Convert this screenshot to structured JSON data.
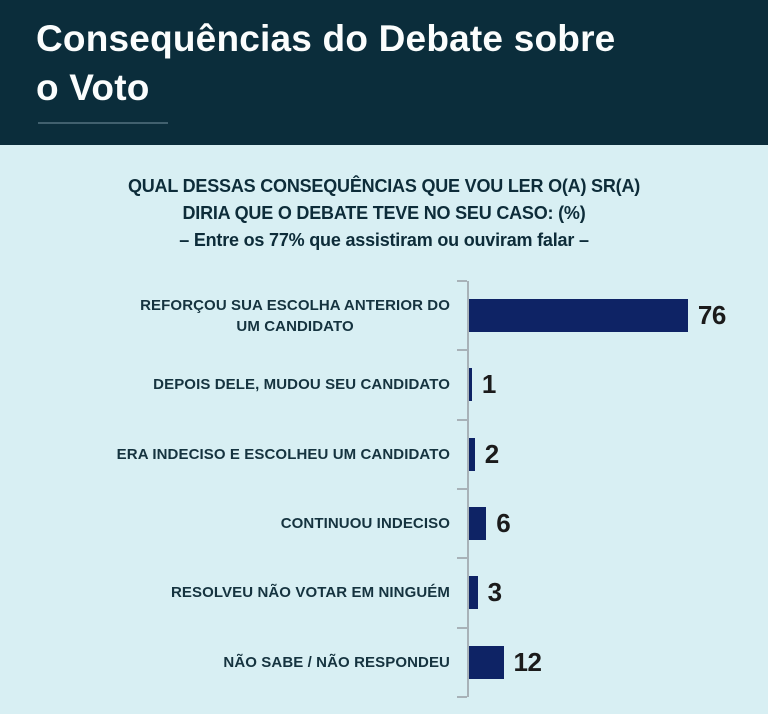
{
  "header": {
    "title": "Consequências do Debate sobre\no Voto"
  },
  "subtitle": {
    "line1": "QUAL DESSAS CONSEQUÊNCIAS QUE VOU LER O(A) SR(A)",
    "line2": "DIRIA QUE O DEBATE TEVE NO SEU CASO: (%)",
    "line3": "– Entre os 77% que assistiram ou ouviram falar –"
  },
  "chart_data": {
    "type": "bar",
    "orientation": "horizontal",
    "title": "Consequências do Debate sobre o Voto",
    "question": "QUAL DESSAS CONSEQUÊNCIAS QUE VOU LER O(A) SR(A) DIRIA QUE O DEBATE TEVE NO SEU CASO: (%) – Entre os 77% que assistiram ou ouviram falar –",
    "unit": "%",
    "categories": [
      "REFORÇOU SUA ESCOLHA ANTERIOR DO\nUM CANDIDATO",
      "DEPOIS DELE, MUDOU SEU CANDIDATO",
      "ERA INDECISO E ESCOLHEU UM CANDIDATO",
      "CONTINUOU INDECISO",
      "RESOLVEU NÃO VOTAR EM NINGUÉM",
      "NÃO SABE / NÃO RESPONDEU"
    ],
    "values": [
      76,
      1,
      2,
      6,
      3,
      12
    ],
    "xlim": [
      0,
      80
    ],
    "grid": false,
    "legend": "none",
    "value_labels": "outside-end"
  },
  "colors": {
    "page_bg": "#d8eff3",
    "header_bg": "#0b2d3b",
    "title_color": "#fbfdfd",
    "underline_color": "#41606e",
    "subtitle_color": "#0d2c39",
    "label_color": "#15333f",
    "bar_color": "#0e2365",
    "value_color": "#1b1b1b",
    "axis_color": "#a8b2b8"
  }
}
